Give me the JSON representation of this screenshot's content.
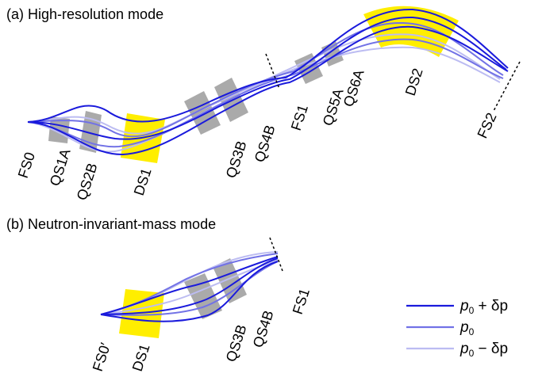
{
  "panel_a": {
    "title": "(a) High-resolution mode",
    "labels": {
      "fs0": "FS0",
      "qs1a": "QS1A",
      "qs2b": "QS2B",
      "ds1": "DS1",
      "qs3b": "QS3B",
      "qs4b": "QS4B",
      "fs1": "FS1",
      "qs5a": "QS5A",
      "qs6a": "QS6A",
      "ds2": "DS2",
      "fs2": "FS2"
    }
  },
  "panel_b": {
    "title": "(b) Neutron-invariant-mass mode",
    "labels": {
      "fs0p": "FS0′",
      "ds1": "DS1",
      "qs3b": "QS3B",
      "qs4b": "QS4B",
      "fs1": "FS1"
    }
  },
  "legend": {
    "items": [
      {
        "main": "p",
        "sub": "0",
        "suffix": " + δp"
      },
      {
        "main": "p",
        "sub": "0",
        "suffix": ""
      },
      {
        "main": "p",
        "sub": "0",
        "suffix": " − δp"
      }
    ]
  },
  "colors": {
    "dipole": "#ffee00",
    "quad": "#aaaaaa",
    "ray_plus": "#1a1adc",
    "ray_zero": "#7272e6",
    "ray_minus": "#bcbcf2"
  }
}
